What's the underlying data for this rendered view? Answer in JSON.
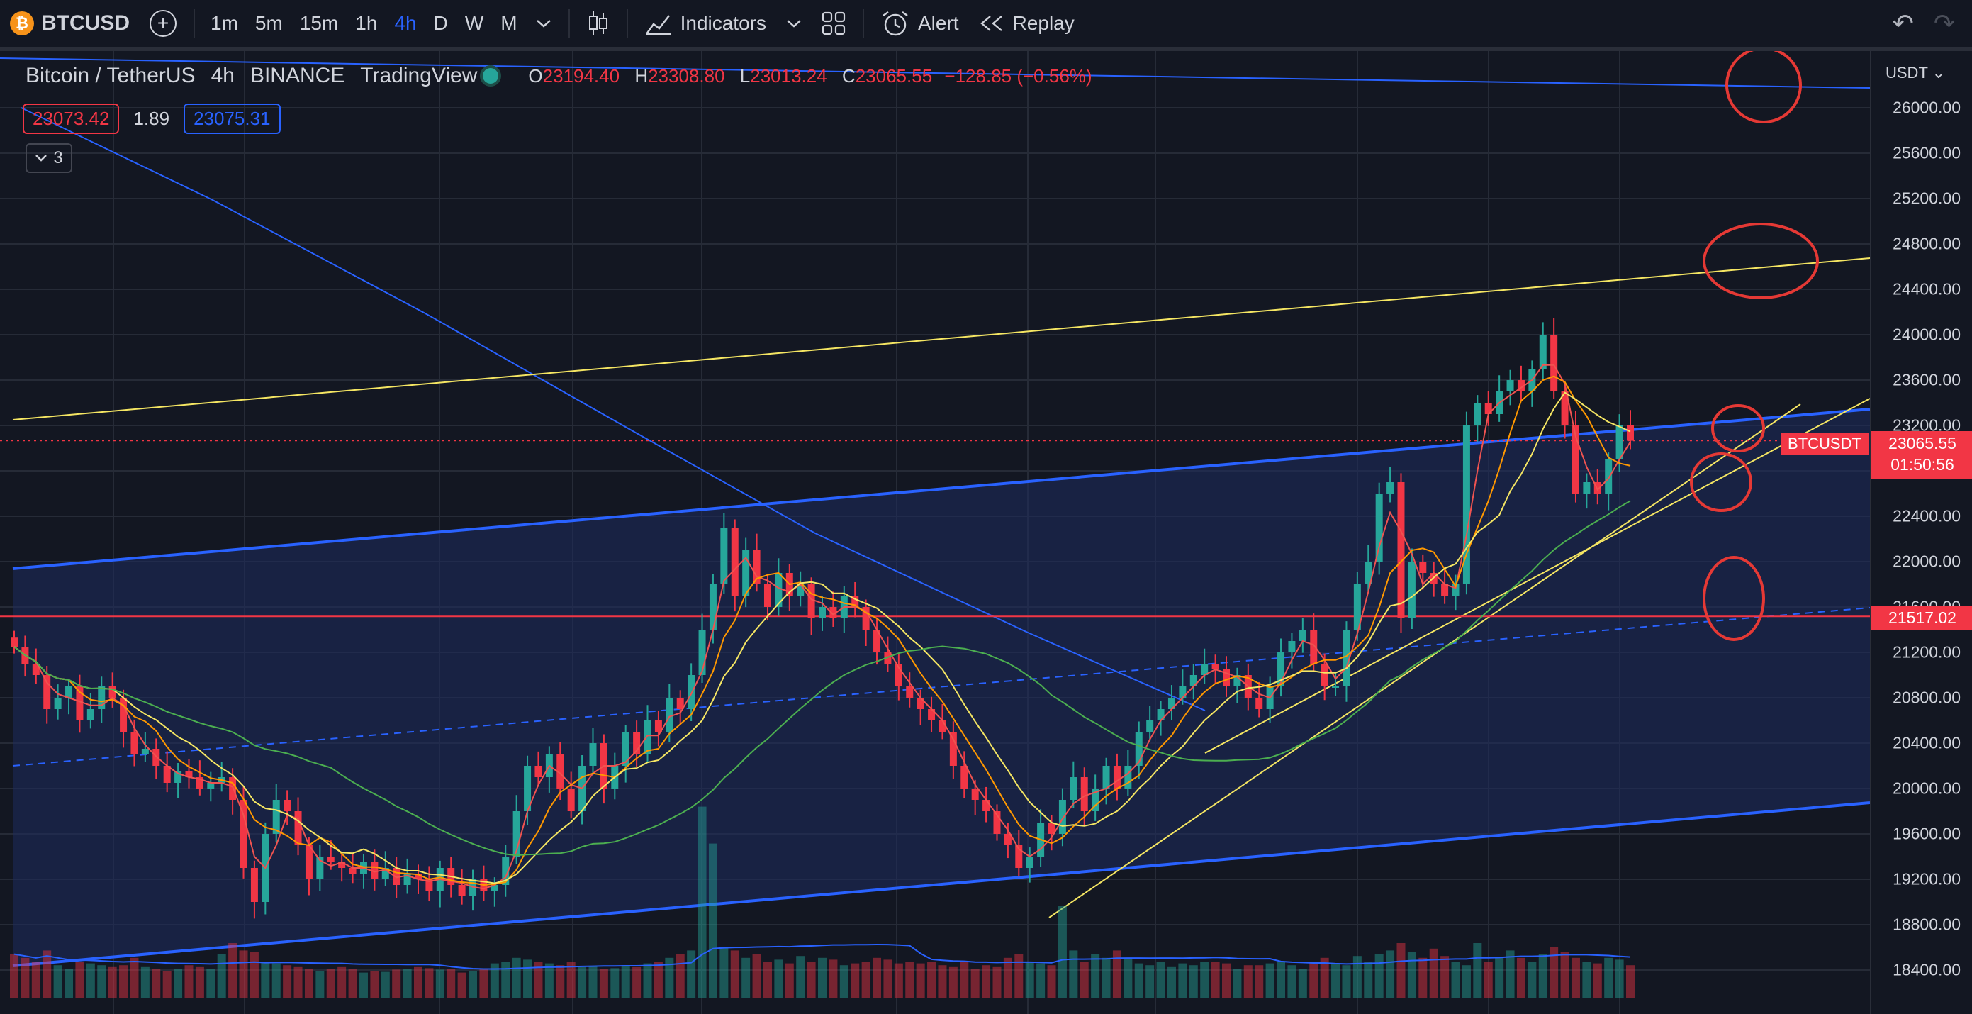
{
  "toolbar": {
    "symbol": "BTCUSD",
    "symbol_logo": "₿",
    "add_symbol_icon": "+",
    "intervals": [
      "1m",
      "5m",
      "15m",
      "1h",
      "4h",
      "D",
      "W",
      "M"
    ],
    "active_interval": "4h",
    "chart_type_icon": "candles-icon",
    "indicators_label": "Indicators",
    "layout_icon": "grid-icon",
    "alert_label": "Alert",
    "replay_label": "Replay",
    "undo_icon": "↶",
    "redo_icon": "↷"
  },
  "legend": {
    "pair": "Bitcoin / TetherUS",
    "interval": "4h",
    "exchange": "BINANCE",
    "source": "TradingView",
    "open_label": "O",
    "open": "23194.40",
    "high_label": "H",
    "high": "23308.80",
    "low_label": "L",
    "low": "23013.24",
    "close_label": "C",
    "close": "23065.55",
    "change": "−128.85 (−0.56%)",
    "bid": "23073.42",
    "spread": "1.89",
    "ask": "23075.31",
    "indicators_count": "3"
  },
  "axis": {
    "currency": "USDT",
    "ticks": [
      "26000.00",
      "25600.00",
      "25200.00",
      "24800.00",
      "24400.00",
      "24000.00",
      "23600.00",
      "23200.00",
      "22800.00",
      "22400.00",
      "22000.00",
      "21600.00",
      "21200.00",
      "20800.00",
      "20400.00",
      "20000.00",
      "19600.00",
      "19200.00",
      "18800.00",
      "18400.00"
    ],
    "last_price": "23065.55",
    "countdown": "01:50:56",
    "symbol_tag": "BTCUSDT",
    "level_price": "21517.02"
  },
  "colors": {
    "up": "#26a69a",
    "down": "#f23645",
    "channel": "#2962ff",
    "trend": "#f5e663",
    "ma_red": "#ef5350",
    "ma_orange": "#ff9800",
    "ma_yellow": "#f5e663",
    "ma_green": "#4caf50",
    "ma_blue": "#2962ff",
    "annotation": "#e53935"
  },
  "chart_data": {
    "type": "candlestick",
    "symbol": "BTCUSDT",
    "interval": "4h",
    "ylim": [
      18200,
      26400
    ],
    "closes": [
      21250,
      21100,
      21000,
      20700,
      20800,
      20900,
      20600,
      20700,
      20900,
      20800,
      20500,
      20300,
      20350,
      20200,
      20050,
      20150,
      20100,
      20000,
      20050,
      20100,
      19900,
      19300,
      19000,
      19600,
      19900,
      19800,
      19500,
      19200,
      19400,
      19350,
      19300,
      19250,
      19350,
      19200,
      19300,
      19150,
      19250,
      19200,
      19100,
      19300,
      19150,
      19050,
      19200,
      19100,
      19150,
      19400,
      19800,
      20200,
      20100,
      20300,
      20000,
      19800,
      20200,
      20400,
      20000,
      20200,
      20500,
      20300,
      20600,
      20500,
      20800,
      20700,
      21000,
      21400,
      21800,
      22300,
      21700,
      22100,
      21800,
      21600,
      21900,
      21700,
      21800,
      21500,
      21600,
      21500,
      21700,
      21600,
      21400,
      21200,
      21100,
      20900,
      20800,
      20700,
      20600,
      20500,
      20200,
      20000,
      19900,
      19800,
      19600,
      19500,
      19300,
      19400,
      19700,
      19600,
      19900,
      20100,
      19800,
      20000,
      20200,
      20000,
      20200,
      20500,
      20600,
      20700,
      20800,
      20900,
      21000,
      21100,
      21050,
      20900,
      21000,
      20800,
      20700,
      20900,
      21200,
      21300,
      21400,
      21100,
      20900,
      20900,
      21400,
      21800,
      22000,
      22600,
      22700,
      21500,
      22000,
      21900,
      21800,
      21700,
      21800,
      23200,
      23400,
      23300,
      23500,
      23600,
      23500,
      23700,
      24000,
      23500,
      23200,
      22600,
      22700,
      22600,
      22900,
      23200,
      23065
    ],
    "volume": [
      120,
      110,
      100,
      130,
      90,
      80,
      100,
      95,
      90,
      85,
      90,
      110,
      85,
      80,
      75,
      80,
      90,
      85,
      80,
      120,
      150,
      130,
      125,
      100,
      95,
      90,
      85,
      80,
      75,
      80,
      85,
      80,
      70,
      75,
      72,
      78,
      80,
      85,
      82,
      78,
      80,
      70,
      75,
      80,
      95,
      100,
      110,
      105,
      100,
      95,
      90,
      100,
      85,
      88,
      80,
      82,
      90,
      85,
      95,
      100,
      110,
      120,
      130,
      520,
      420,
      140,
      130,
      110,
      120,
      100,
      105,
      95,
      115,
      100,
      110,
      105,
      90,
      95,
      100,
      110,
      105,
      95,
      100,
      95,
      100,
      90,
      85,
      100,
      80,
      90,
      85,
      110,
      120,
      100,
      95,
      90,
      250,
      130,
      100,
      120,
      110,
      130,
      110,
      95,
      90,
      100,
      85,
      95,
      90,
      100,
      100,
      95,
      80,
      90,
      90,
      95,
      100,
      90,
      80,
      100,
      110,
      95,
      90,
      115,
      100,
      120,
      130,
      150,
      125,
      110,
      135,
      115,
      100,
      90,
      150,
      100,
      110,
      130,
      110,
      100,
      120,
      140,
      125,
      110,
      100,
      95,
      110,
      105,
      90
    ],
    "horizontal_levels": [
      21517.02,
      23065.55
    ],
    "annotations": [
      "circle",
      "circle",
      "circle",
      "circle",
      "circle"
    ]
  }
}
